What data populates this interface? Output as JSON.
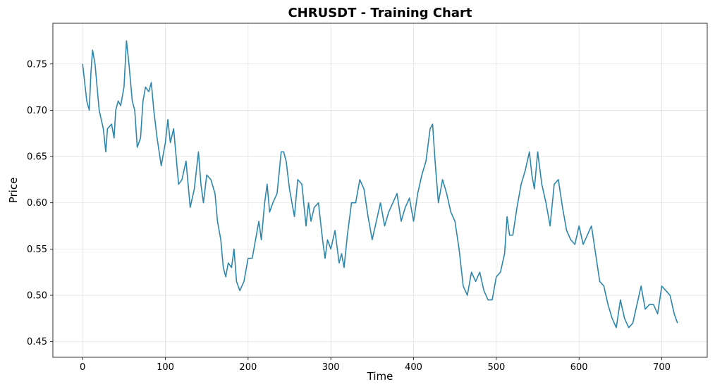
{
  "chart_data": {
    "type": "line",
    "title": "CHRUSDT - Training Chart",
    "x_label": "Time",
    "y_label": "Price",
    "color": "#2e86ab",
    "grid": true,
    "xlim": [
      -35.95,
      754.95
    ],
    "ylim": [
      0.433,
      0.794
    ],
    "xticks": [
      0,
      100,
      200,
      300,
      400,
      500,
      600,
      700
    ],
    "yticks": [
      0.45,
      {
        "value": 0.5,
        "label": "0.50"
      },
      0.55,
      {
        "value": 0.6,
        "label": "0.60"
      },
      0.65,
      {
        "value": 0.7,
        "label": "0.70"
      },
      0.75
    ],
    "x": [
      0,
      5,
      8,
      10,
      12,
      15,
      18,
      20,
      25,
      28,
      30,
      35,
      38,
      40,
      43,
      46,
      50,
      53,
      56,
      60,
      63,
      66,
      70,
      73,
      76,
      80,
      83,
      86,
      90,
      95,
      100,
      103,
      106,
      110,
      113,
      116,
      120,
      125,
      130,
      135,
      140,
      143,
      146,
      150,
      155,
      160,
      163,
      167,
      170,
      173,
      176,
      180,
      183,
      186,
      190,
      195,
      200,
      205,
      210,
      213,
      216,
      220,
      223,
      226,
      230,
      235,
      240,
      243,
      246,
      250,
      253,
      256,
      260,
      265,
      270,
      273,
      276,
      280,
      285,
      290,
      293,
      296,
      300,
      305,
      310,
      313,
      316,
      320,
      325,
      330,
      335,
      340,
      345,
      350,
      355,
      360,
      365,
      370,
      375,
      380,
      385,
      390,
      395,
      400,
      405,
      410,
      415,
      420,
      423,
      426,
      430,
      435,
      440,
      445,
      450,
      455,
      460,
      465,
      470,
      475,
      480,
      485,
      490,
      495,
      500,
      505,
      510,
      513,
      516,
      520,
      525,
      530,
      535,
      540,
      543,
      546,
      550,
      555,
      560,
      565,
      570,
      575,
      580,
      585,
      590,
      595,
      600,
      605,
      610,
      615,
      620,
      625,
      630,
      635,
      640,
      645,
      650,
      655,
      660,
      665,
      670,
      675,
      680,
      685,
      690,
      695,
      700,
      705,
      710,
      715,
      719
    ],
    "values": [
      0.75,
      0.71,
      0.7,
      0.74,
      0.765,
      0.75,
      0.72,
      0.7,
      0.68,
      0.655,
      0.68,
      0.685,
      0.67,
      0.7,
      0.71,
      0.705,
      0.725,
      0.775,
      0.75,
      0.71,
      0.7,
      0.66,
      0.67,
      0.71,
      0.725,
      0.72,
      0.73,
      0.7,
      0.67,
      0.64,
      0.665,
      0.69,
      0.665,
      0.68,
      0.65,
      0.62,
      0.625,
      0.645,
      0.595,
      0.615,
      0.655,
      0.62,
      0.6,
      0.63,
      0.625,
      0.61,
      0.58,
      0.56,
      0.53,
      0.52,
      0.535,
      0.53,
      0.55,
      0.515,
      0.505,
      0.515,
      0.54,
      0.54,
      0.565,
      0.58,
      0.56,
      0.6,
      0.62,
      0.59,
      0.6,
      0.61,
      0.655,
      0.655,
      0.645,
      0.615,
      0.6,
      0.585,
      0.625,
      0.62,
      0.575,
      0.6,
      0.58,
      0.595,
      0.6,
      0.56,
      0.54,
      0.56,
      0.55,
      0.57,
      0.535,
      0.545,
      0.53,
      0.565,
      0.6,
      0.6,
      0.625,
      0.615,
      0.585,
      0.56,
      0.58,
      0.6,
      0.575,
      0.59,
      0.6,
      0.61,
      0.58,
      0.595,
      0.605,
      0.58,
      0.61,
      0.63,
      0.645,
      0.68,
      0.685,
      0.645,
      0.6,
      0.625,
      0.61,
      0.59,
      0.58,
      0.55,
      0.51,
      0.5,
      0.525,
      0.515,
      0.525,
      0.505,
      0.495,
      0.495,
      0.52,
      0.525,
      0.545,
      0.585,
      0.565,
      0.565,
      0.595,
      0.62,
      0.635,
      0.655,
      0.63,
      0.615,
      0.655,
      0.62,
      0.6,
      0.575,
      0.62,
      0.625,
      0.595,
      0.57,
      0.56,
      0.555,
      0.575,
      0.555,
      0.565,
      0.575,
      0.545,
      0.515,
      0.51,
      0.49,
      0.475,
      0.465,
      0.495,
      0.475,
      0.465,
      0.47,
      0.49,
      0.51,
      0.485,
      0.49,
      0.49,
      0.48,
      0.51,
      0.505,
      0.5,
      0.48,
      0.47
    ]
  }
}
